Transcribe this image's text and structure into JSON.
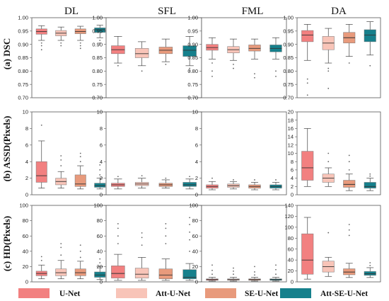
{
  "columns": [
    "DL",
    "SFL",
    "FML",
    "DA"
  ],
  "rows": [
    "(a) DSC",
    "(b) ASSD(Pixels)",
    "(c) HD(Pixels)"
  ],
  "legend": [
    {
      "name": "U-Net",
      "color": "#f28080"
    },
    {
      "name": "Att-U-Net",
      "color": "#f8c4b8"
    },
    {
      "name": "SE-U-Net",
      "color": "#e89a7c"
    },
    {
      "name": "Att-SE-U-Net",
      "color": "#16808c"
    }
  ],
  "chart_data": [
    {
      "type": "box",
      "row": "(a) DSC",
      "column": "DL",
      "ylim": [
        0.7,
        1.0
      ],
      "yticks": [
        "0.70",
        "0.75",
        "0.80",
        "0.85",
        "0.90",
        "0.95",
        "1.00"
      ],
      "series": [
        {
          "name": "U-Net",
          "whisker_low": 0.915,
          "q1": 0.938,
          "median": 0.948,
          "q3": 0.958,
          "whisker_high": 0.97,
          "outliers": [
            0.905,
            0.895,
            0.88
          ]
        },
        {
          "name": "Att-U-Net",
          "whisker_low": 0.915,
          "q1": 0.932,
          "median": 0.942,
          "q3": 0.952,
          "whisker_high": 0.965,
          "outliers": [
            0.905,
            0.895
          ]
        },
        {
          "name": "SE-U-Net",
          "whisker_low": 0.915,
          "q1": 0.94,
          "median": 0.948,
          "q3": 0.958,
          "whisker_high": 0.968,
          "outliers": [
            0.905,
            0.895,
            0.885
          ]
        },
        {
          "name": "Att-SE-U-Net",
          "whisker_low": 0.925,
          "q1": 0.945,
          "median": 0.955,
          "q3": 0.962,
          "whisker_high": 0.972,
          "outliers": [
            0.915,
            0.905
          ]
        }
      ]
    },
    {
      "type": "box",
      "row": "(a) DSC",
      "column": "SFL",
      "ylim": [
        0.7,
        1.0
      ],
      "yticks": [
        "0.70",
        "0.75",
        "0.80",
        "0.85",
        "0.90",
        "0.95",
        "1.00"
      ],
      "series": [
        {
          "name": "U-Net",
          "whisker_low": 0.83,
          "q1": 0.865,
          "median": 0.88,
          "q3": 0.895,
          "whisker_high": 0.93,
          "outliers": [
            0.82
          ]
        },
        {
          "name": "Att-U-Net",
          "whisker_low": 0.82,
          "q1": 0.85,
          "median": 0.865,
          "q3": 0.885,
          "whisker_high": 0.91,
          "outliers": [
            0.8
          ]
        },
        {
          "name": "SE-U-Net",
          "whisker_low": 0.835,
          "q1": 0.865,
          "median": 0.878,
          "q3": 0.89,
          "whisker_high": 0.92,
          "outliers": [
            0.825
          ]
        },
        {
          "name": "Att-SE-U-Net",
          "whisker_low": 0.82,
          "q1": 0.855,
          "median": 0.878,
          "q3": 0.895,
          "whisker_high": 0.93,
          "outliers": [
            0.81,
            0.8
          ]
        }
      ]
    },
    {
      "type": "box",
      "row": "(a) DSC",
      "column": "FML",
      "ylim": [
        0.7,
        1.0
      ],
      "yticks": [
        "0.70",
        "0.75",
        "0.80",
        "0.85",
        "0.90",
        "0.95",
        "1.00"
      ],
      "series": [
        {
          "name": "U-Net",
          "whisker_low": 0.845,
          "q1": 0.878,
          "median": 0.888,
          "q3": 0.9,
          "whisker_high": 0.925,
          "outliers": [
            0.83,
            0.8,
            0.78
          ]
        },
        {
          "name": "Att-U-Net",
          "whisker_low": 0.84,
          "q1": 0.868,
          "median": 0.88,
          "q3": 0.892,
          "whisker_high": 0.92,
          "outliers": [
            0.825,
            0.81
          ]
        },
        {
          "name": "SE-U-Net",
          "whisker_low": 0.845,
          "q1": 0.875,
          "median": 0.885,
          "q3": 0.898,
          "whisker_high": 0.92,
          "outliers": [
            0.79,
            0.775
          ]
        },
        {
          "name": "Att-SE-U-Net",
          "whisker_low": 0.845,
          "q1": 0.872,
          "median": 0.885,
          "q3": 0.898,
          "whisker_high": 0.925,
          "outliers": [
            0.8,
            0.78
          ]
        }
      ]
    },
    {
      "type": "box",
      "row": "(a) DSC",
      "column": "DA",
      "ylim": [
        0.7,
        1.0
      ],
      "yticks": [
        "0.70",
        "0.75",
        "0.80",
        "0.85",
        "0.90",
        "0.95",
        "1.00"
      ],
      "series": [
        {
          "name": "U-Net",
          "whisker_low": 0.84,
          "q1": 0.91,
          "median": 0.935,
          "q3": 0.952,
          "whisker_high": 0.975,
          "outliers": [
            0.77,
            0.755,
            0.71
          ]
        },
        {
          "name": "Att-U-Net",
          "whisker_low": 0.83,
          "q1": 0.88,
          "median": 0.905,
          "q3": 0.93,
          "whisker_high": 0.96,
          "outliers": [
            0.81,
            0.8,
            0.735
          ]
        },
        {
          "name": "SE-U-Net",
          "whisker_low": 0.855,
          "q1": 0.905,
          "median": 0.925,
          "q3": 0.945,
          "whisker_high": 0.975,
          "outliers": [
            0.83
          ]
        },
        {
          "name": "Att-SE-U-Net",
          "whisker_low": 0.86,
          "q1": 0.91,
          "median": 0.935,
          "q3": 0.955,
          "whisker_high": 0.985,
          "outliers": [
            0.82
          ]
        }
      ]
    },
    {
      "type": "box",
      "row": "(b) ASSD(Pixels)",
      "column": "DL",
      "ylim": [
        0,
        10
      ],
      "yticks": [
        "0",
        "2",
        "4",
        "6",
        "8",
        "10"
      ],
      "series": [
        {
          "name": "U-Net",
          "whisker_low": 0.8,
          "q1": 1.5,
          "median": 2.3,
          "q3": 4.0,
          "whisker_high": 6.5,
          "outliers": [
            8.4
          ]
        },
        {
          "name": "Att-U-Net",
          "whisker_low": 0.8,
          "q1": 1.2,
          "median": 1.6,
          "q3": 2.0,
          "whisker_high": 2.8,
          "outliers": [
            3.5,
            4.2,
            4.7
          ]
        },
        {
          "name": "SE-U-Net",
          "whisker_low": 0.7,
          "q1": 1.0,
          "median": 1.3,
          "q3": 2.4,
          "whisker_high": 3.5,
          "outliers": [
            4.0,
            4.6,
            5.0
          ]
        },
        {
          "name": "Att-SE-U-Net",
          "whisker_low": 0.7,
          "q1": 0.9,
          "median": 1.1,
          "q3": 1.4,
          "whisker_high": 2.0,
          "outliers": [
            2.4,
            3.0,
            3.6
          ]
        }
      ]
    },
    {
      "type": "box",
      "row": "(b) ASSD(Pixels)",
      "column": "SFL",
      "ylim": [
        0,
        10
      ],
      "yticks": [
        "0",
        "2",
        "4",
        "6",
        "8",
        "10"
      ],
      "series": [
        {
          "name": "U-Net",
          "whisker_low": 0.7,
          "q1": 1.0,
          "median": 1.2,
          "q3": 1.4,
          "whisker_high": 1.9,
          "outliers": [
            2.2
          ]
        },
        {
          "name": "Att-U-Net",
          "whisker_low": 0.8,
          "q1": 1.1,
          "median": 1.3,
          "q3": 1.5,
          "whisker_high": 2.0,
          "outliers": [
            2.3
          ]
        },
        {
          "name": "SE-U-Net",
          "whisker_low": 0.8,
          "q1": 1.0,
          "median": 1.2,
          "q3": 1.4,
          "whisker_high": 1.8,
          "outliers": [
            2.0
          ]
        },
        {
          "name": "Att-SE-U-Net",
          "whisker_low": 0.7,
          "q1": 1.0,
          "median": 1.2,
          "q3": 1.5,
          "whisker_high": 1.9,
          "outliers": [
            2.2
          ]
        }
      ]
    },
    {
      "type": "box",
      "row": "(b) ASSD(Pixels)",
      "column": "FML",
      "ylim": [
        0,
        10
      ],
      "yticks": [
        "0",
        "2",
        "4",
        "6",
        "8",
        "10"
      ],
      "series": [
        {
          "name": "U-Net",
          "whisker_low": 0.6,
          "q1": 0.8,
          "median": 1.0,
          "q3": 1.2,
          "whisker_high": 1.6,
          "outliers": [
            2.0
          ]
        },
        {
          "name": "Att-U-Net",
          "whisker_low": 0.7,
          "q1": 0.9,
          "median": 1.1,
          "q3": 1.3,
          "whisker_high": 1.6,
          "outliers": [
            1.8
          ]
        },
        {
          "name": "SE-U-Net",
          "whisker_low": 0.6,
          "q1": 0.8,
          "median": 1.0,
          "q3": 1.2,
          "whisker_high": 1.5,
          "outliers": [
            1.8
          ]
        },
        {
          "name": "Att-SE-U-Net",
          "whisker_low": 0.6,
          "q1": 0.8,
          "median": 1.0,
          "q3": 1.2,
          "whisker_high": 1.5,
          "outliers": [
            1.8
          ]
        }
      ]
    },
    {
      "type": "box",
      "row": "(b) ASSD(Pixels)",
      "column": "DA",
      "ylim": [
        0,
        20
      ],
      "yticks": [
        "0",
        "2",
        "4",
        "6",
        "8",
        "10",
        "12",
        "14",
        "16",
        "18",
        "20"
      ],
      "series": [
        {
          "name": "U-Net",
          "whisker_low": 2.0,
          "q1": 3.5,
          "median": 6.5,
          "q3": 10.5,
          "whisker_high": 16.0,
          "outliers": []
        },
        {
          "name": "Att-U-Net",
          "whisker_low": 2.0,
          "q1": 3.0,
          "median": 4.0,
          "q3": 5.0,
          "whisker_high": 6.5,
          "outliers": [
            8.0,
            10.0
          ]
        },
        {
          "name": "SE-U-Net",
          "whisker_low": 1.0,
          "q1": 1.8,
          "median": 2.5,
          "q3": 3.5,
          "whisker_high": 5.0,
          "outliers": [
            6.0,
            8.0,
            9.5
          ]
        },
        {
          "name": "Att-SE-U-Net",
          "whisker_low": 1.0,
          "q1": 1.6,
          "median": 2.0,
          "q3": 3.0,
          "whisker_high": 4.0,
          "outliers": [
            4.5,
            5.0
          ]
        }
      ]
    },
    {
      "type": "box",
      "row": "(c) HD(Pixels)",
      "column": "DL",
      "ylim": [
        0,
        100
      ],
      "yticks": [
        "0",
        "20",
        "40",
        "60",
        "80",
        "100"
      ],
      "series": [
        {
          "name": "U-Net",
          "whisker_low": 4,
          "q1": 8,
          "median": 11,
          "q3": 14,
          "whisker_high": 22,
          "outliers": [
            28,
            33
          ]
        },
        {
          "name": "Att-U-Net",
          "whisker_low": 4,
          "q1": 8,
          "median": 12,
          "q3": 17,
          "whisker_high": 28,
          "outliers": [
            35,
            45,
            50
          ]
        },
        {
          "name": "SE-U-Net",
          "whisker_low": 4,
          "q1": 8,
          "median": 12,
          "q3": 17,
          "whisker_high": 27,
          "outliers": [
            32,
            40,
            48
          ]
        },
        {
          "name": "Att-SE-U-Net",
          "whisker_low": 3,
          "q1": 6,
          "median": 9,
          "q3": 13,
          "whisker_high": 20,
          "outliers": [
            25,
            30
          ]
        }
      ]
    },
    {
      "type": "box",
      "row": "(c) HD(Pixels)",
      "column": "SFL",
      "ylim": [
        0,
        100
      ],
      "yticks": [
        "0",
        "20",
        "40",
        "60",
        "80",
        "100"
      ],
      "series": [
        {
          "name": "U-Net",
          "whisker_low": 2,
          "q1": 5,
          "median": 11,
          "q3": 21,
          "whisker_high": 36,
          "outliers": [
            50,
            60,
            70,
            76
          ]
        },
        {
          "name": "Att-U-Net",
          "whisker_low": 2,
          "q1": 5,
          "median": 10,
          "q3": 18,
          "whisker_high": 32,
          "outliers": [
            48,
            58,
            64
          ]
        },
        {
          "name": "SE-U-Net",
          "whisker_low": 2,
          "q1": 4,
          "median": 9,
          "q3": 17,
          "whisker_high": 30,
          "outliers": [
            50,
            60,
            70,
            76
          ]
        },
        {
          "name": "Att-SE-U-Net",
          "whisker_low": 2,
          "q1": 4,
          "median": 6,
          "q3": 16,
          "whisker_high": 24,
          "outliers": [
            40,
            55,
            65,
            75,
            84
          ]
        }
      ]
    },
    {
      "type": "box",
      "row": "(c) HD(Pixels)",
      "column": "FML",
      "ylim": [
        0,
        100
      ],
      "yticks": [
        "0",
        "20",
        "40",
        "60",
        "80",
        "100"
      ],
      "series": [
        {
          "name": "U-Net",
          "whisker_low": 1,
          "q1": 2,
          "median": 3,
          "q3": 4,
          "whisker_high": 6,
          "outliers": [
            10,
            15,
            22
          ]
        },
        {
          "name": "Att-U-Net",
          "whisker_low": 1,
          "q1": 2,
          "median": 3,
          "q3": 4,
          "whisker_high": 6,
          "outliers": [
            10,
            14,
            18
          ]
        },
        {
          "name": "SE-U-Net",
          "whisker_low": 1,
          "q1": 2,
          "median": 3,
          "q3": 4,
          "whisker_high": 6,
          "outliers": [
            9,
            13,
            20
          ]
        },
        {
          "name": "Att-SE-U-Net",
          "whisker_low": 1,
          "q1": 2,
          "median": 3,
          "q3": 4,
          "whisker_high": 6,
          "outliers": [
            10,
            16,
            22
          ]
        }
      ]
    },
    {
      "type": "box",
      "row": "(c) HD(Pixels)",
      "column": "DA",
      "ylim": [
        0,
        140
      ],
      "yticks": [
        "0",
        "20",
        "40",
        "60",
        "80",
        "100",
        "120",
        "140"
      ],
      "series": [
        {
          "name": "U-Net",
          "whisker_low": 5,
          "q1": 14,
          "median": 40,
          "q3": 88,
          "whisker_high": 118,
          "outliers": []
        },
        {
          "name": "Att-U-Net",
          "whisker_low": 10,
          "q1": 18,
          "median": 28,
          "q3": 38,
          "whisker_high": 45,
          "outliers": [
            90
          ]
        },
        {
          "name": "SE-U-Net",
          "whisker_low": 8,
          "q1": 13,
          "median": 18,
          "q3": 24,
          "whisker_high": 34,
          "outliers": [
            85,
            95,
            105
          ]
        },
        {
          "name": "Att-SE-U-Net",
          "whisker_low": 8,
          "q1": 12,
          "median": 15,
          "q3": 19,
          "whisker_high": 26,
          "outliers": [
            30,
            35
          ]
        }
      ]
    }
  ]
}
